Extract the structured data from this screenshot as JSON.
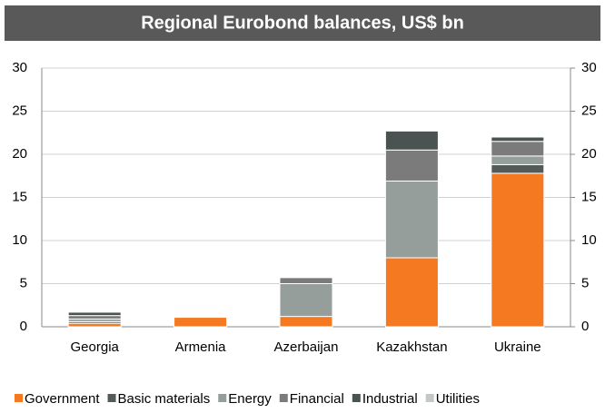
{
  "chart_data": {
    "type": "stacked_bar",
    "title": "Regional Eurobond balances, US$ bn",
    "categories": [
      "Georgia",
      "Armenia",
      "Azerbaijan",
      "Kazakhstan",
      "Ukraine"
    ],
    "series": [
      {
        "name": "Government",
        "color": "#f47920",
        "values": [
          0.4,
          1.1,
          1.2,
          8.0,
          17.8
        ]
      },
      {
        "name": "Basic materials",
        "color": "#545a58",
        "values": [
          0.2,
          0,
          0,
          0,
          1.0
        ]
      },
      {
        "name": "Energy",
        "color": "#969e9c",
        "values": [
          0.3,
          0,
          3.8,
          8.9,
          1.0
        ]
      },
      {
        "name": "Financial",
        "color": "#7b7b7b",
        "values": [
          0.4,
          0.1,
          0.7,
          3.6,
          1.7
        ]
      },
      {
        "name": "Industrial",
        "color": "#4a5252",
        "values": [
          0.4,
          0,
          0,
          2.2,
          0.5
        ]
      },
      {
        "name": "Utilities",
        "color": "#c3c7c5",
        "values": [
          0.1,
          0.1,
          0,
          0,
          0
        ]
      }
    ],
    "ylim": [
      0,
      30
    ],
    "yticks": [
      0,
      5,
      10,
      15,
      20,
      25,
      30
    ],
    "y2lim": [
      0,
      30
    ],
    "y2ticks": [
      0,
      5,
      10,
      15,
      20,
      25,
      30
    ],
    "grid": true,
    "legend": "bottom"
  }
}
